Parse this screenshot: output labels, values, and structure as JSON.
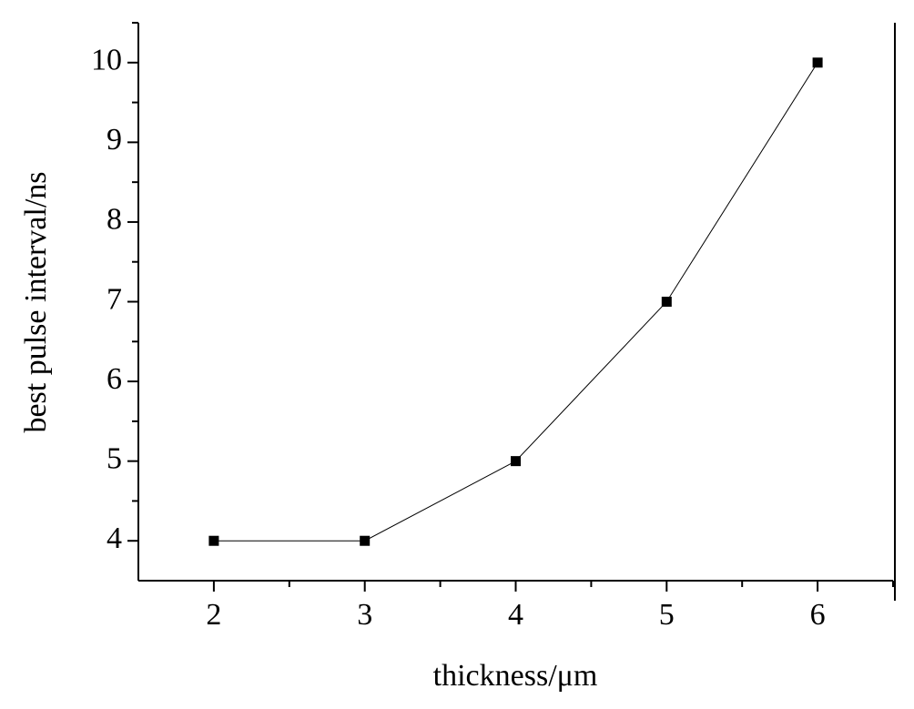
{
  "chart_data": {
    "type": "line",
    "xlabel": "thickness/μm",
    "ylabel": "best pulse interval/ns",
    "x": [
      2,
      3,
      4,
      5,
      6
    ],
    "series": [
      {
        "color": "#000000",
        "values": [
          4,
          4,
          5,
          7,
          10
        ]
      }
    ],
    "xlim": [
      1.5,
      6.5
    ],
    "xticks": [
      2,
      3,
      4,
      5,
      6
    ],
    "xminorticks": [
      2.5,
      3.5,
      4.5,
      5.5,
      6.5
    ],
    "ylim": [
      3.5,
      10.5
    ],
    "yticks": [
      4,
      5,
      6,
      7,
      8,
      9,
      10
    ],
    "yminorticks": [
      4.5,
      5.5,
      6.5,
      7.5,
      8.5,
      9.5,
      10.5
    ],
    "grid": false,
    "marker": "square"
  }
}
